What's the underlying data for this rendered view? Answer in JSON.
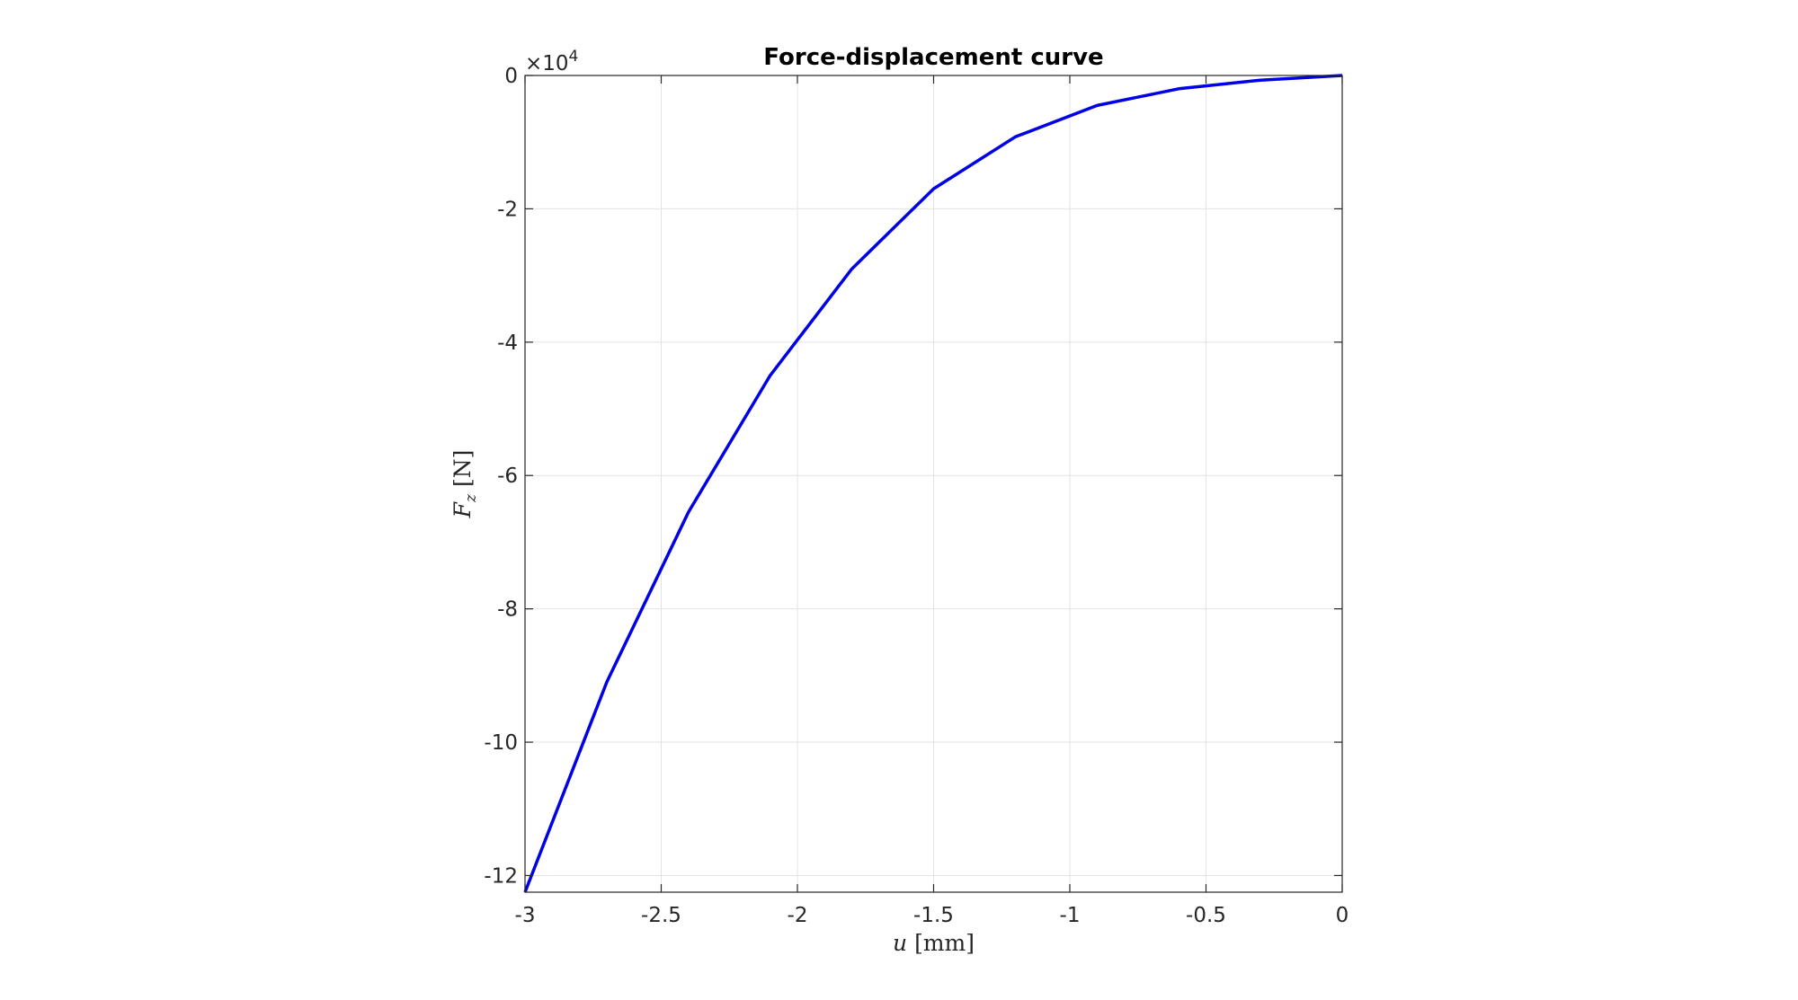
{
  "chart_data": {
    "type": "line",
    "title": "Force-displacement curve",
    "xlabel": {
      "symbol": "u",
      "unit": "[mm]"
    },
    "ylabel": {
      "symbol": "F",
      "subscript": "z",
      "unit": "[N]"
    },
    "y_exponent_label": {
      "base": "×10",
      "power": "4"
    },
    "xlim": [
      -3,
      0
    ],
    "ylim": [
      -12.25,
      0
    ],
    "x_ticks": [
      -3,
      -2.5,
      -2,
      -1.5,
      -1,
      -0.5,
      0
    ],
    "x_tick_labels": [
      "-3",
      "-2.5",
      "-2",
      "-1.5",
      "-1",
      "-0.5",
      "0"
    ],
    "y_ticks": [
      0,
      -2,
      -4,
      -6,
      -8,
      -10,
      -12
    ],
    "y_tick_labels": [
      "0",
      "-2",
      "-4",
      "-6",
      "-8",
      "-10",
      "-12"
    ],
    "grid": true,
    "series": [
      {
        "color": "#0000e6",
        "x": [
          -3.0,
          -2.7,
          -2.4,
          -2.1,
          -1.8,
          -1.5,
          -1.2,
          -0.9,
          -0.6,
          -0.3,
          0.0
        ],
        "y": [
          -12.25,
          -9.1,
          -6.55,
          -4.5,
          -2.9,
          -1.7,
          -0.92,
          -0.45,
          -0.2,
          -0.07,
          0.0
        ]
      }
    ]
  }
}
